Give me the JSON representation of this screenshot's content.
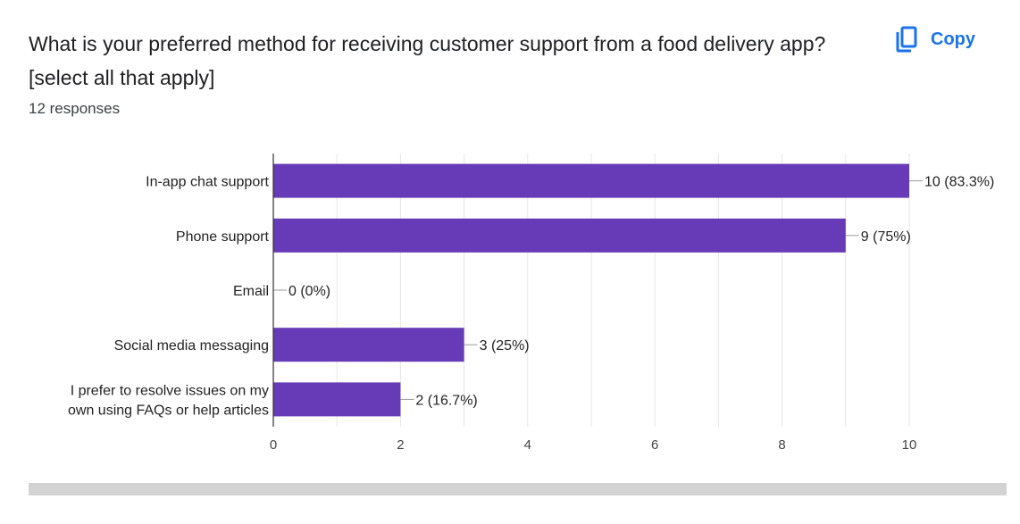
{
  "question": {
    "title": "What is your preferred method for receiving customer support from a food delivery app? [select all that apply]",
    "responses": "12 responses"
  },
  "copy_button": {
    "label": "Copy",
    "icon": "copy-icon"
  },
  "colors": {
    "bar": "#673ab7",
    "accent": "#1a73e8",
    "grid": "#e6e6e6",
    "axis": "#333333"
  },
  "chart_data": {
    "type": "bar",
    "orientation": "horizontal",
    "categories": [
      [
        "In-app chat support"
      ],
      [
        "Phone support"
      ],
      [
        "Email"
      ],
      [
        "Social media messaging"
      ],
      [
        "I prefer to resolve issues on my",
        "own using FAQs or help articles"
      ]
    ],
    "values": [
      10,
      9,
      0,
      3,
      2
    ],
    "data_labels": [
      "10 (83.3%)",
      "9 (75%)",
      "0 (0%)",
      "3 (25%)",
      "2 (16.7%)"
    ],
    "xlim": [
      0,
      10
    ],
    "x_ticks": [
      "0",
      "2",
      "4",
      "6",
      "8",
      "10"
    ],
    "grid": true,
    "xlabel": "",
    "ylabel": ""
  }
}
